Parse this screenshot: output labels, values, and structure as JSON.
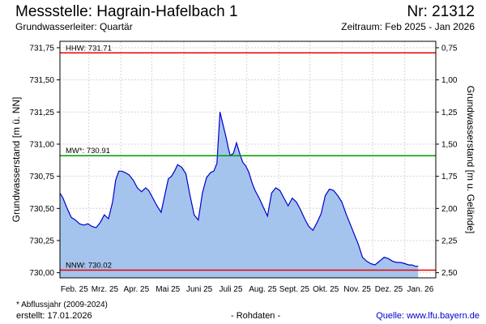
{
  "header": {
    "title": "Messstelle: Hagrain-Hafelbach 1",
    "nr": "Nr: 21312",
    "subtitle": "Grundwasserleiter: Quartär",
    "zeitraum": "Zeitraum: Feb 2025 - Jan 2026"
  },
  "footer": {
    "footnote": "* Abflussjahr (2009-2024)",
    "erstellt": "erstellt:  17.01.2026",
    "rohdaten": "- Rohdaten -",
    "quelle": "Quelle:  www.lfu.bayern.de"
  },
  "chart_data": {
    "type": "area",
    "ylabel": "Grundwasserstand [m ü. NN]",
    "y2label": "Grundwasserstand [m u. Gelände]",
    "ylim": [
      729.96,
      731.8
    ],
    "y_ticks": [
      731.75,
      731.5,
      731.25,
      731.0,
      730.75,
      730.5,
      730.25,
      730.0
    ],
    "y_tick_labels": [
      "731,75",
      "731,50",
      "731,25",
      "731,00",
      "730,75",
      "730,50",
      "730,25",
      "730,00"
    ],
    "y2_ticks": [
      0.75,
      1.0,
      1.25,
      1.5,
      1.75,
      2.0,
      2.25,
      2.5
    ],
    "y2_tick_labels": [
      "0,75",
      "1,00",
      "1,25",
      "1,50",
      "1,75",
      "2,00",
      "2,25",
      "2,50"
    ],
    "ground_level": 732.5,
    "x_labels": [
      "Feb. 25",
      "Mrz. 25",
      "Apr. 25",
      "Mai 25",
      "Juni 25",
      "Juli 25",
      "Aug. 25",
      "Sept. 25",
      "Okt. 25",
      "Nov. 25",
      "Dez. 25",
      "Jan. 26"
    ],
    "x_range": [
      "2025-02-01",
      "2026-01-31"
    ],
    "grid": true,
    "fill_color": "#a4c4ee",
    "line_color": "#0000cc",
    "reference_lines": [
      {
        "label": "HHW: 731.71",
        "value": 731.71,
        "color": "#ee0000"
      },
      {
        "label": "MW*: 730.91",
        "value": 730.91,
        "color": "#009900"
      },
      {
        "label": "NNW: 730.02",
        "value": 730.02,
        "color": "#ee0000"
      }
    ],
    "series": [
      {
        "x": [
          "2025-02-01",
          "2025-02-04",
          "2025-02-08",
          "2025-02-12",
          "2025-02-16",
          "2025-02-20",
          "2025-02-24",
          "2025-02-28",
          "2025-03-04",
          "2025-03-08",
          "2025-03-12",
          "2025-03-16",
          "2025-03-20",
          "2025-03-24",
          "2025-03-27",
          "2025-03-30",
          "2025-04-02",
          "2025-04-05",
          "2025-04-09",
          "2025-04-13",
          "2025-04-17",
          "2025-04-21",
          "2025-04-25",
          "2025-04-28",
          "2025-05-02",
          "2025-05-06",
          "2025-05-10",
          "2025-05-14",
          "2025-05-17",
          "2025-05-20",
          "2025-05-23",
          "2025-05-26",
          "2025-05-30",
          "2025-06-03",
          "2025-06-07",
          "2025-06-11",
          "2025-06-15",
          "2025-06-19",
          "2025-06-23",
          "2025-06-27",
          "2025-06-30",
          "2025-07-03",
          "2025-07-06",
          "2025-07-09",
          "2025-07-12",
          "2025-07-14",
          "2025-07-16",
          "2025-07-19",
          "2025-07-22",
          "2025-07-25",
          "2025-07-28",
          "2025-07-31",
          "2025-08-03",
          "2025-08-06",
          "2025-08-09",
          "2025-08-13",
          "2025-08-17",
          "2025-08-21",
          "2025-08-25",
          "2025-08-29",
          "2025-09-02",
          "2025-09-06",
          "2025-09-10",
          "2025-09-14",
          "2025-09-18",
          "2025-09-22",
          "2025-09-26",
          "2025-09-30",
          "2025-10-04",
          "2025-10-08",
          "2025-10-12",
          "2025-10-16",
          "2025-10-20",
          "2025-10-24",
          "2025-10-28",
          "2025-11-01",
          "2025-11-05",
          "2025-11-09",
          "2025-11-13",
          "2025-11-17",
          "2025-11-21",
          "2025-11-25",
          "2025-11-29",
          "2025-12-03",
          "2025-12-06",
          "2025-12-09",
          "2025-12-12",
          "2025-12-16",
          "2025-12-20",
          "2025-12-24",
          "2025-12-28",
          "2026-01-01",
          "2026-01-05",
          "2026-01-08",
          "2026-01-11",
          "2026-01-14"
        ],
        "values": [
          730.62,
          730.58,
          730.5,
          730.43,
          730.41,
          730.38,
          730.37,
          730.38,
          730.36,
          730.35,
          730.39,
          730.45,
          730.42,
          730.55,
          730.72,
          730.79,
          730.79,
          730.78,
          730.76,
          730.72,
          730.66,
          730.63,
          730.66,
          730.64,
          730.58,
          730.52,
          730.47,
          730.62,
          730.73,
          730.75,
          730.79,
          730.84,
          730.82,
          730.77,
          730.6,
          730.45,
          730.41,
          730.62,
          730.74,
          730.78,
          730.79,
          730.85,
          731.25,
          731.15,
          731.05,
          730.97,
          730.91,
          730.93,
          731.01,
          730.93,
          730.86,
          730.83,
          730.78,
          730.7,
          730.64,
          730.58,
          730.51,
          730.44,
          730.62,
          730.66,
          730.64,
          730.58,
          730.52,
          730.58,
          730.55,
          730.49,
          730.42,
          730.36,
          730.33,
          730.39,
          730.46,
          730.6,
          730.65,
          730.64,
          730.6,
          730.55,
          730.46,
          730.38,
          730.3,
          730.22,
          730.12,
          730.09,
          730.07,
          730.06,
          730.08,
          730.1,
          730.12,
          730.11,
          730.09,
          730.08,
          730.08,
          730.07,
          730.06,
          730.06,
          730.05,
          730.05
        ]
      }
    ]
  }
}
